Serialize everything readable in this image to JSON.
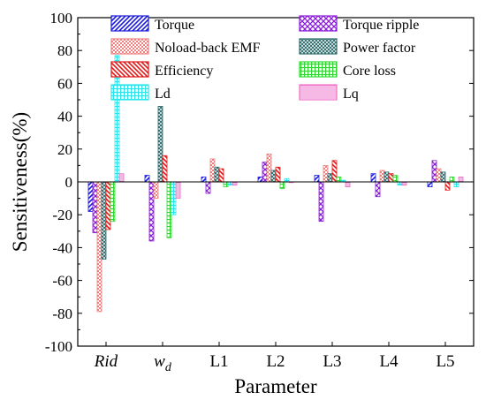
{
  "chart_data": {
    "type": "bar",
    "title": "",
    "xlabel": "Parameter",
    "ylabel": "Sensitiveness(%)",
    "ylim": [
      -100,
      100
    ],
    "yticks": [
      -100,
      -80,
      -60,
      -40,
      -20,
      0,
      20,
      40,
      60,
      80,
      100
    ],
    "grid": false,
    "legend_position": "top",
    "categories": [
      {
        "main": "Rid",
        "sub": "",
        "italic": true
      },
      {
        "main": "w",
        "sub": "d",
        "italic": true
      },
      {
        "main": "L1",
        "sub": "",
        "italic": false
      },
      {
        "main": "L2",
        "sub": "",
        "italic": false
      },
      {
        "main": "L3",
        "sub": "",
        "italic": false
      },
      {
        "main": "L4",
        "sub": "",
        "italic": false
      },
      {
        "main": "L5",
        "sub": "",
        "italic": false
      }
    ],
    "series": [
      {
        "name": "Torque",
        "color": "#1a1ad8",
        "pattern": "diag-right",
        "values": [
          -18,
          4,
          3,
          3,
          4,
          5,
          -3
        ]
      },
      {
        "name": "Torque ripple",
        "color": "#8a1ad8",
        "pattern": "cross",
        "values": [
          -31,
          -36,
          -7,
          12,
          -24,
          -9,
          13
        ]
      },
      {
        "name": "Noload-back EMF",
        "color": "#ee8080",
        "pattern": "dots",
        "values": [
          -79,
          -10,
          14,
          17,
          10,
          7,
          8
        ]
      },
      {
        "name": "Power factor",
        "color": "#2a6a6a",
        "pattern": "dense",
        "values": [
          -47,
          46,
          9,
          7,
          5,
          6,
          6
        ]
      },
      {
        "name": "Efficiency",
        "color": "#e01818",
        "pattern": "diag-left",
        "values": [
          -29,
          16,
          8,
          9,
          13,
          5,
          -5
        ]
      },
      {
        "name": "Core loss",
        "color": "#2fd82f",
        "pattern": "grid",
        "values": [
          -24,
          -34,
          -3,
          -4,
          3,
          4,
          3
        ]
      },
      {
        "name": "Ld",
        "color": "#25e6ec",
        "pattern": "grid",
        "values": [
          77,
          -20,
          -2,
          2,
          1,
          -2,
          -3
        ]
      },
      {
        "name": "Lq",
        "color": "#ee70c8",
        "pattern": "horiz",
        "values": [
          5,
          -10,
          -2,
          0,
          -3,
          -2,
          3
        ]
      }
    ]
  }
}
